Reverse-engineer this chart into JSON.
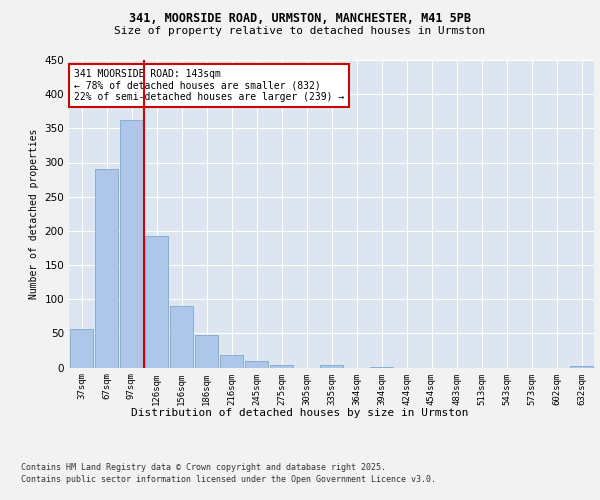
{
  "title_line1": "341, MOORSIDE ROAD, URMSTON, MANCHESTER, M41 5PB",
  "title_line2": "Size of property relative to detached houses in Urmston",
  "xlabel": "Distribution of detached houses by size in Urmston",
  "ylabel": "Number of detached properties",
  "footer_line1": "Contains HM Land Registry data © Crown copyright and database right 2025.",
  "footer_line2": "Contains public sector information licensed under the Open Government Licence v3.0.",
  "annotation_line1": "341 MOORSIDE ROAD: 143sqm",
  "annotation_line2": "← 78% of detached houses are smaller (832)",
  "annotation_line3": "22% of semi-detached houses are larger (239) →",
  "bar_labels": [
    "37sqm",
    "67sqm",
    "97sqm",
    "126sqm",
    "156sqm",
    "186sqm",
    "216sqm",
    "245sqm",
    "275sqm",
    "305sqm",
    "335sqm",
    "364sqm",
    "394sqm",
    "424sqm",
    "454sqm",
    "483sqm",
    "513sqm",
    "543sqm",
    "573sqm",
    "602sqm",
    "632sqm"
  ],
  "bar_values": [
    57,
    290,
    362,
    193,
    90,
    48,
    19,
    9,
    4,
    0,
    4,
    0,
    1,
    0,
    0,
    0,
    0,
    0,
    0,
    0,
    2
  ],
  "bar_color": "#aec6e8",
  "bar_edge_color": "#7aaad0",
  "vline_color": "#cc0000",
  "background_color": "#dde6f0",
  "grid_color": "#ffffff",
  "fig_background": "#f2f2f2",
  "ylim": [
    0,
    450
  ],
  "yticks": [
    0,
    50,
    100,
    150,
    200,
    250,
    300,
    350,
    400,
    450
  ]
}
